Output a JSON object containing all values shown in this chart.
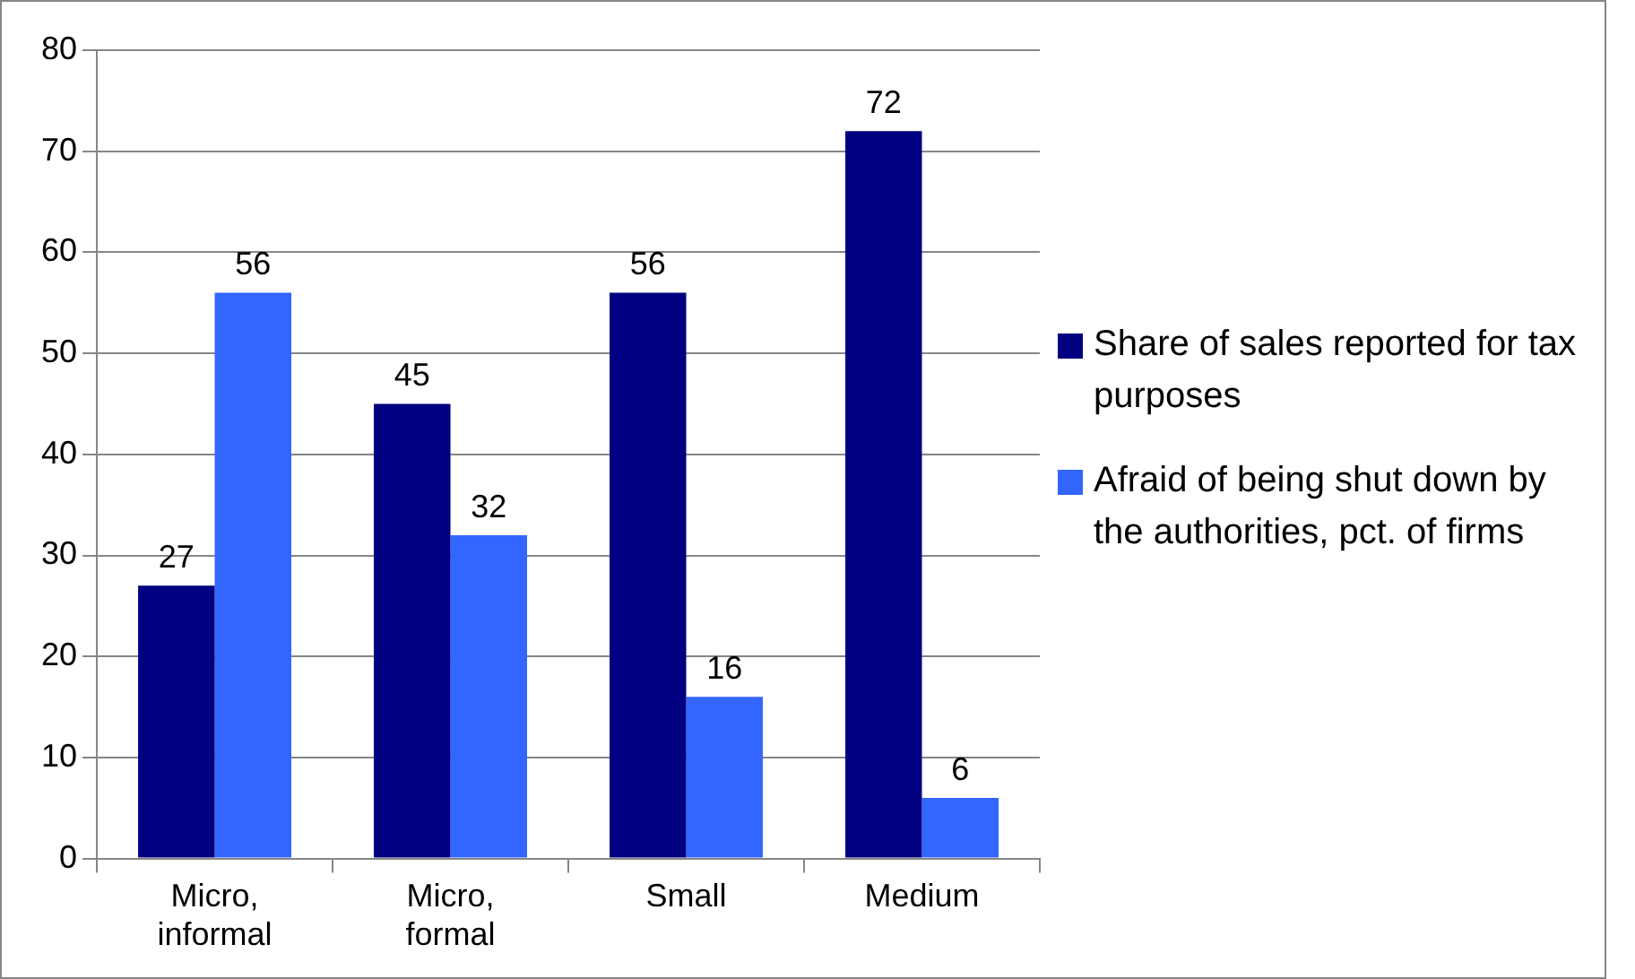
{
  "chart_data": {
    "type": "bar",
    "categories": [
      "Micro, informal",
      "Micro, formal",
      "Small",
      "Medium"
    ],
    "series": [
      {
        "name": "Share of sales reported for tax purposes",
        "color": "#000080",
        "values": [
          27,
          45,
          56,
          72
        ]
      },
      {
        "name": "Afraid of being shut down by the authorities, pct. of firms",
        "color": "#3366ff",
        "values": [
          56,
          32,
          16,
          6
        ]
      }
    ],
    "ylim": [
      0,
      80
    ],
    "yticks": [
      0,
      10,
      20,
      30,
      40,
      50,
      60,
      70,
      80
    ],
    "grid": "y",
    "legend": "right",
    "data_labels": true
  }
}
